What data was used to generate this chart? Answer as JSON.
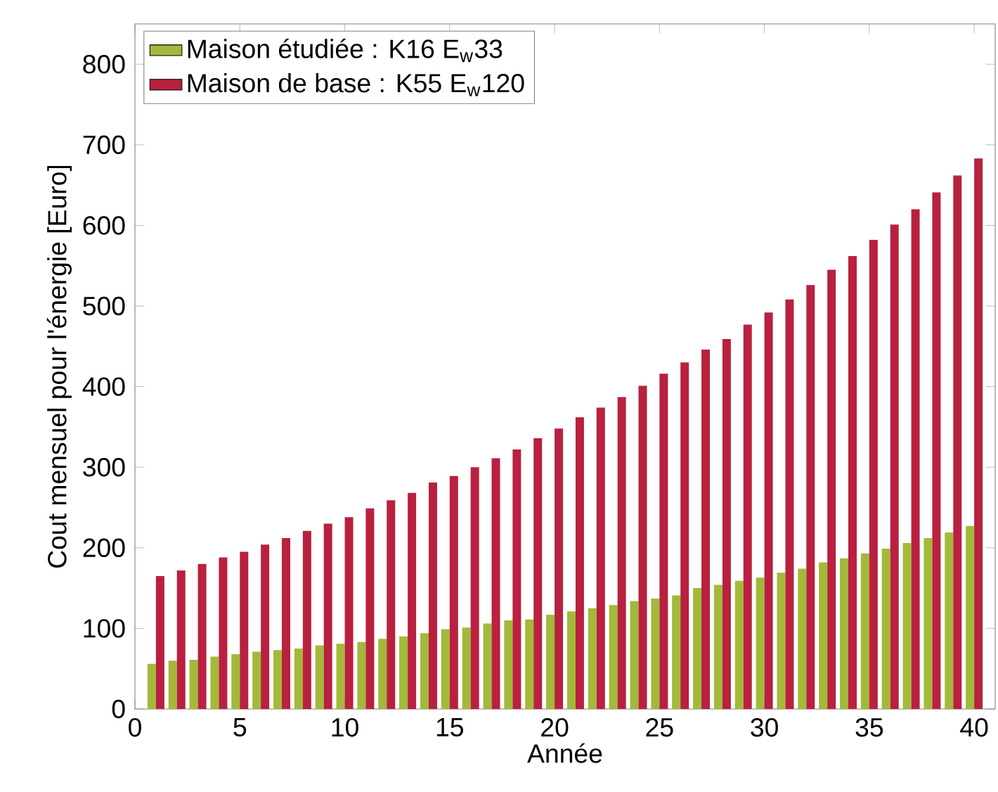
{
  "chart_data": {
    "type": "bar",
    "xlabel": "Année",
    "ylabel": "Cout mensuel pour l'énergie [Euro]",
    "x": [
      1,
      2,
      3,
      4,
      5,
      6,
      7,
      8,
      9,
      10,
      11,
      12,
      13,
      14,
      15,
      16,
      17,
      18,
      19,
      20,
      21,
      22,
      23,
      24,
      25,
      26,
      27,
      28,
      29,
      30,
      31,
      32,
      33,
      34,
      35,
      36,
      37,
      38,
      39,
      40
    ],
    "series": [
      {
        "name": "Maison étudiée :  K16 E$_{w}$33",
        "color": "#a3b93a",
        "values": [
          56,
          60,
          61,
          65,
          68,
          71,
          73,
          75,
          79,
          81,
          83,
          87,
          90,
          94,
          99,
          101,
          106,
          110,
          111,
          117,
          121,
          125,
          129,
          134,
          137,
          141,
          150,
          154,
          159,
          163,
          169,
          174,
          182,
          187,
          193,
          199,
          206,
          212,
          219,
          227
        ]
      },
      {
        "name": "Maison de base : K55 E$_{w}$120",
        "color": "#b8213f",
        "values": [
          165,
          172,
          180,
          188,
          195,
          204,
          212,
          221,
          230,
          238,
          249,
          259,
          268,
          281,
          289,
          300,
          311,
          322,
          336,
          348,
          362,
          374,
          387,
          401,
          416,
          430,
          446,
          459,
          477,
          492,
          508,
          526,
          545,
          562,
          582,
          601,
          620,
          641,
          662,
          683
        ]
      }
    ],
    "xlim": [
      0,
      41
    ],
    "ylim": [
      0,
      850
    ],
    "xticks": [
      0,
      5,
      10,
      15,
      20,
      25,
      30,
      35,
      40
    ],
    "yticks": [
      0,
      100,
      200,
      300,
      400,
      500,
      600,
      700,
      800
    ],
    "legend": "top left"
  }
}
